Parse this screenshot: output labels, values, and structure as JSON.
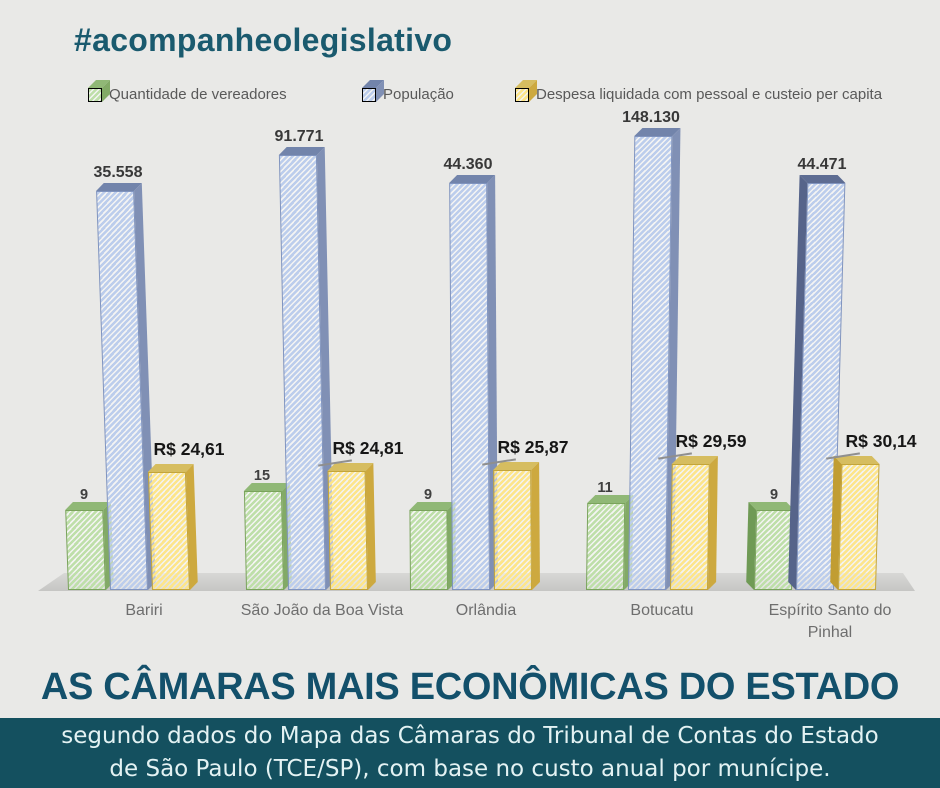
{
  "header": {
    "hashtag": "#acompanheolegislativo"
  },
  "legend": {
    "items": [
      {
        "label": "Quantidade de vereadores",
        "color": "#a9d18e"
      },
      {
        "label": "População",
        "color": "#b4c7e7"
      },
      {
        "label": "Despesa liquidada com pessoal e custeio per capita",
        "color": "#ffe699"
      }
    ]
  },
  "chart_data": {
    "type": "bar",
    "categories": [
      "Bariri",
      "São João da Boa Vista",
      "Orlândia",
      "Botucatu",
      "Espírito Santo do Pinhal"
    ],
    "series": [
      {
        "name": "Quantidade de vereadores",
        "color": "#a9d18e",
        "values": [
          9,
          15,
          9,
          11,
          9
        ],
        "value_labels": [
          "9",
          "15",
          "9",
          "11",
          "9"
        ]
      },
      {
        "name": "População",
        "color": "#b4c7e7",
        "values": [
          35558,
          91771,
          44360,
          148130,
          44471
        ],
        "value_labels": [
          "35.558",
          "91.771",
          "44.360",
          "148.130",
          "44.471"
        ]
      },
      {
        "name": "Despesa liquidada com pessoal e custeio per capita",
        "color": "#ffe699",
        "values": [
          24.61,
          24.81,
          25.87,
          29.59,
          30.14
        ],
        "value_labels": [
          "R$ 24,61",
          "R$ 24,81",
          "R$ 25,87",
          "R$ 29,59",
          "R$ 30,14"
        ]
      }
    ],
    "style": "3d-hatched-columns",
    "y_scale": "log",
    "gridlines": false,
    "legend_position": "top"
  },
  "footer": {
    "headline": "AS CÂMARAS MAIS ECONÔMICAS DO ESTADO",
    "source_line1": "segundo dados do Mapa das Câmaras do Tribunal de Contas do Estado",
    "source_line2": "de São Paulo (TCE/SP), com base no custo anual por munícipe.",
    "band_color": "#14505f",
    "headline_color": "#13506b"
  }
}
